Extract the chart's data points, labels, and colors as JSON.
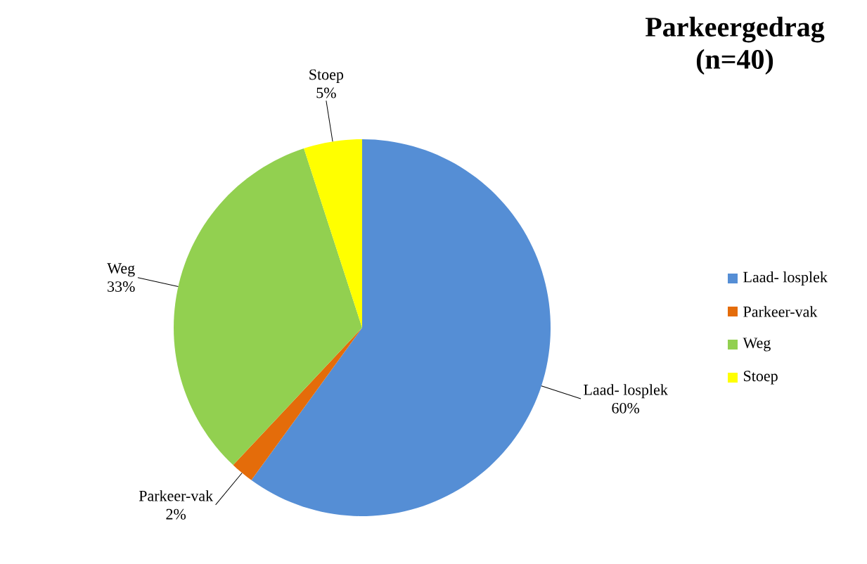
{
  "chart_data": {
    "type": "pie",
    "title": "Parkeergedrag (n=40)",
    "categories": [
      "Laad- losplek",
      "Parkeer-vak",
      "Weg",
      "Stoep"
    ],
    "values": [
      60,
      2,
      33,
      5
    ],
    "value_labels": [
      "60%",
      "2%",
      "33%",
      "5%"
    ],
    "colors": [
      "#558ed5",
      "#e46c0a",
      "#92d050",
      "#ffff00"
    ],
    "legend": "right"
  }
}
